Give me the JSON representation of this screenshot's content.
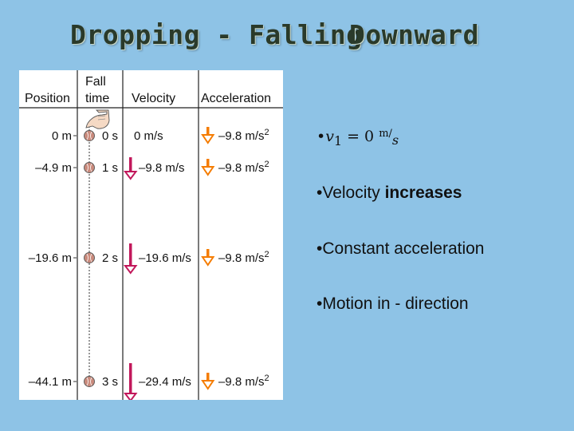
{
  "slide": {
    "title_part1": "Dropping - Falling",
    "title_part2": "Downward"
  },
  "figure": {
    "headers": {
      "position": "Position",
      "fall_time_line1": "Fall",
      "fall_time_line2": "time",
      "velocity": "Velocity",
      "acceleration": "Acceleration"
    },
    "rows": [
      {
        "position": "0 m",
        "time": "0 s",
        "velocity": "0 m/s",
        "acceleration": "–9.8 m/s",
        "acc_exp": "2",
        "velocity_value": 0
      },
      {
        "position": "–4.9 m",
        "time": "1 s",
        "velocity": "–9.8 m/s",
        "acceleration": "–9.8 m/s",
        "acc_exp": "2",
        "velocity_value": -9.8
      },
      {
        "position": "–19.6 m",
        "time": "2 s",
        "velocity": "–19.6 m/s",
        "acceleration": "–9.8 m/s",
        "acc_exp": "2",
        "velocity_value": -19.6
      },
      {
        "position": "–44.1 m",
        "time": "3 s",
        "velocity": "–29.4 m/s",
        "acceleration": "–9.8 m/s",
        "acc_exp": "2",
        "velocity_value": -29.4
      }
    ],
    "colors": {
      "velocity_arrow": "#c2185b",
      "acceleration_arrow": "#f57c00",
      "ball": "#c98a7c",
      "grid": "#222222"
    },
    "icons": [
      "hand-icon",
      "ball-icon",
      "velocity-arrow-icon",
      "acceleration-arrow-icon"
    ]
  },
  "bullets": {
    "item1": {
      "symbol": "v",
      "subscript": "1",
      "equals": "= 0",
      "unit_num": "m",
      "unit_den": "s"
    },
    "item2": {
      "prefix": "Velocity ",
      "emphasis": "increases"
    },
    "item3": {
      "text": "Constant acceleration"
    },
    "item4": {
      "text": "Motion in - direction"
    }
  }
}
